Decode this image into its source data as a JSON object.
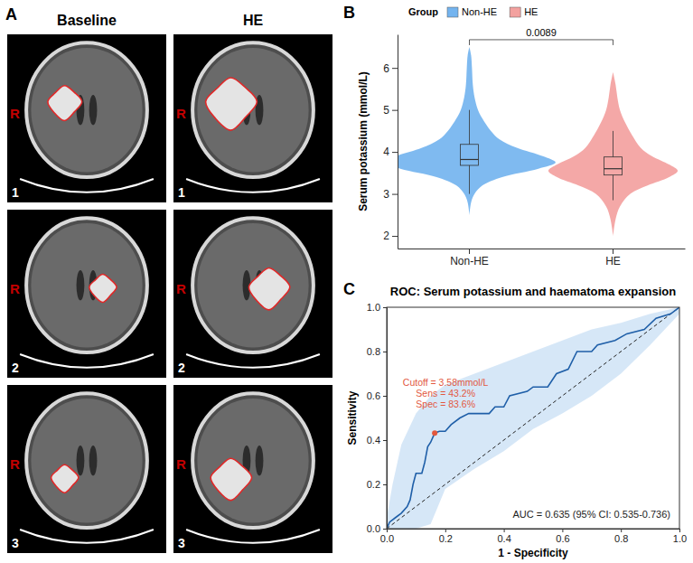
{
  "figure_a": {
    "label": "A",
    "columns": [
      "Baseline",
      "HE"
    ],
    "rows": [
      "1",
      "2",
      "3"
    ],
    "side_label": "R"
  },
  "chart_data": [
    {
      "type": "violin",
      "label": "B",
      "y_label": "Serum potassium (mmol/L)",
      "legend_title": "Group",
      "legend": "top",
      "categories": [
        "Non-HE",
        "HE"
      ],
      "ylim": [
        1.7,
        6.8
      ],
      "yticks": [
        2,
        3,
        4,
        5,
        6
      ],
      "p_label": "0.0089",
      "series": [
        {
          "name": "Non-HE",
          "color": "#74b4ef",
          "density_y": [
            2.5,
            2.8,
            3.0,
            3.2,
            3.4,
            3.6,
            3.75,
            3.9,
            4.1,
            4.3,
            4.5,
            4.8,
            5.0,
            5.3,
            5.6,
            6.0,
            6.3,
            6.5
          ],
          "density": [
            0,
            0.02,
            0.06,
            0.15,
            0.38,
            0.8,
            1.0,
            0.85,
            0.55,
            0.35,
            0.25,
            0.15,
            0.1,
            0.06,
            0.04,
            0.03,
            0.02,
            0
          ],
          "box": {
            "whisker_low": 3.0,
            "q1": 3.68,
            "median": 3.82,
            "q3": 4.18,
            "whisker_high": 5.0
          }
        },
        {
          "name": "HE",
          "color": "#f3a19f",
          "density_y": [
            2.0,
            2.4,
            2.7,
            3.0,
            3.2,
            3.4,
            3.55,
            3.7,
            3.9,
            4.1,
            4.4,
            4.7,
            5.0,
            5.3,
            5.6,
            5.9
          ],
          "density": [
            0,
            0.03,
            0.08,
            0.2,
            0.4,
            0.65,
            0.75,
            0.65,
            0.45,
            0.32,
            0.22,
            0.14,
            0.08,
            0.05,
            0.03,
            0
          ],
          "box": {
            "whisker_low": 2.85,
            "q1": 3.45,
            "median": 3.6,
            "q3": 3.88,
            "whisker_high": 4.5
          }
        }
      ]
    },
    {
      "type": "roc",
      "label": "C",
      "title": "ROC: Serum potassium and haematoma expansion",
      "x_label": "1 - Specificity",
      "y_label": "Sensitivity",
      "xlim": [
        0,
        1
      ],
      "ylim": [
        0,
        1
      ],
      "xticks": [
        {
          "value": 0,
          "label": "0.0"
        },
        {
          "value": 0.2,
          "label": "0.2"
        },
        {
          "value": 0.4,
          "label": "0.4"
        },
        {
          "value": 0.6,
          "label": "0.6"
        },
        {
          "value": 0.8,
          "label": "0.8"
        },
        {
          "value": 1,
          "label": "1.0"
        }
      ],
      "yticks": [
        {
          "value": 0,
          "label": "0.0"
        },
        {
          "value": 0.2,
          "label": "0.2"
        },
        {
          "value": 0.4,
          "label": "0.4"
        },
        {
          "value": 0.6,
          "label": "0.6"
        },
        {
          "value": 0.8,
          "label": "0.8"
        },
        {
          "value": 1,
          "label": "1.0"
        }
      ],
      "color": "#1f5fa8",
      "x": [
        0,
        0.01,
        0.03,
        0.05,
        0.07,
        0.08,
        0.09,
        0.1,
        0.12,
        0.13,
        0.14,
        0.15,
        0.16,
        0.164,
        0.18,
        0.2,
        0.22,
        0.25,
        0.28,
        0.35,
        0.37,
        0.4,
        0.42,
        0.48,
        0.5,
        0.55,
        0.58,
        0.62,
        0.65,
        0.7,
        0.72,
        0.78,
        0.82,
        0.88,
        0.92,
        0.97,
        1
      ],
      "values": [
        0,
        0.03,
        0.05,
        0.07,
        0.1,
        0.13,
        0.2,
        0.25,
        0.25,
        0.3,
        0.37,
        0.39,
        0.42,
        0.432,
        0.44,
        0.44,
        0.47,
        0.5,
        0.52,
        0.52,
        0.55,
        0.55,
        0.6,
        0.62,
        0.64,
        0.64,
        0.7,
        0.72,
        0.8,
        0.8,
        0.83,
        0.85,
        0.88,
        0.9,
        0.95,
        0.97,
        1
      ],
      "band": {
        "color": "#cfe3f6",
        "x": [
          0,
          0.02,
          0.05,
          0.1,
          0.15,
          0.2,
          0.3,
          0.4,
          0.5,
          0.6,
          0.7,
          0.8,
          0.9,
          1
        ],
        "lower": [
          0,
          0,
          0,
          0,
          0.02,
          0.18,
          0.27,
          0.35,
          0.45,
          0.52,
          0.6,
          0.7,
          0.83,
          0.97
        ],
        "upper": [
          0.05,
          0.2,
          0.38,
          0.52,
          0.6,
          0.65,
          0.7,
          0.75,
          0.8,
          0.85,
          0.9,
          0.93,
          0.97,
          1
        ]
      },
      "cutoff": {
        "x": 0.164,
        "y": 0.432,
        "color": "#e2583e",
        "labels": [
          "Cutoff = 3.58mmol/L",
          "Sens = 43.2%",
          "Spec = 83.6%"
        ]
      },
      "annotation": "AUC = 0.635 (95% CI: 0.535-0.736)"
    }
  ]
}
